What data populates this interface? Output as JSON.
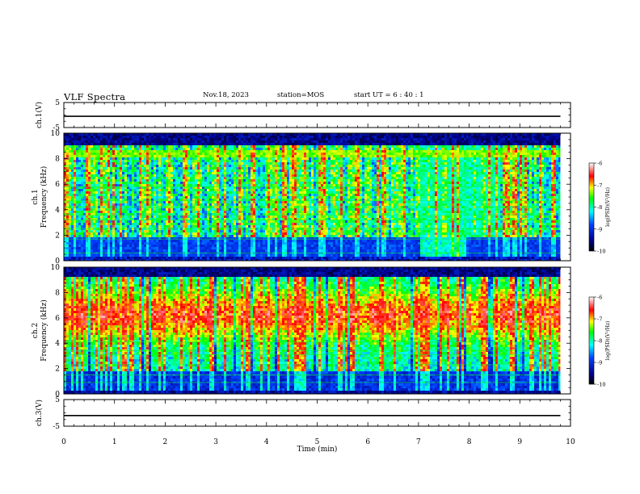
{
  "header": {
    "title": "VLF Spectra",
    "date": "Nov.18, 2023",
    "station": "station=MOS",
    "start_ut": "start UT =  6 : 40 : 1"
  },
  "chart_data": [
    {
      "type": "line",
      "panel": "ch1-waveform",
      "ylabel": "ch.1(V)",
      "ylim": [
        -5,
        5
      ],
      "yticks": [
        "5",
        "-5"
      ],
      "xlim": [
        0,
        10
      ],
      "series": [
        {
          "x": [
            0,
            9.8
          ],
          "y": [
            -0.5,
            -0.5
          ]
        }
      ]
    },
    {
      "type": "heatmap",
      "panel": "ch1-spectrogram",
      "ylabel": "ch.1\nFrequency (kHz)",
      "ylim": [
        0,
        10
      ],
      "yticks": [
        "0",
        "2",
        "4",
        "6",
        "8",
        "10"
      ],
      "xlim": [
        0,
        10
      ],
      "data_x_end": 9.8,
      "colorbar": {
        "label": "log(PSD)(V²/Hz)",
        "ticks": [
          "-6",
          "-7",
          "-8",
          "-9",
          "-10"
        ],
        "range": [
          -10,
          -6
        ]
      }
    },
    {
      "type": "heatmap",
      "panel": "ch2-spectrogram",
      "ylabel": "ch.2\nFrequency (kHz)",
      "ylim": [
        0,
        10
      ],
      "yticks": [
        "0",
        "2",
        "4",
        "6",
        "8",
        "10"
      ],
      "xlim": [
        0,
        10
      ],
      "data_x_end": 9.8,
      "colorbar": {
        "label": "log(PSD)(V²/Hz)",
        "ticks": [
          "-6",
          "-7",
          "-8",
          "-9",
          "-10"
        ],
        "range": [
          -10,
          -6
        ]
      }
    },
    {
      "type": "line",
      "panel": "ch3-waveform",
      "ylabel": "ch.3(V)",
      "ylim": [
        -5,
        5
      ],
      "yticks": [
        "5",
        "-5"
      ],
      "xlim": [
        0,
        10
      ],
      "xlabel": "Time (min)",
      "xticks": [
        "0",
        "1",
        "2",
        "3",
        "4",
        "5",
        "6",
        "7",
        "8",
        "9",
        "10"
      ],
      "series": [
        {
          "x": [
            0,
            9.8
          ],
          "y": [
            -1,
            -1
          ]
        }
      ]
    }
  ]
}
